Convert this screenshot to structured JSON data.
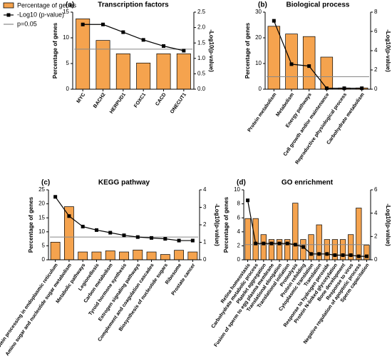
{
  "legend": {
    "items": [
      "Percentage of genes",
      "-Log10 (p-value)",
      "p=0.05"
    ]
  },
  "chart_data": [
    {
      "type": "bar_line",
      "panel": "(a)",
      "title": "Transcription factors",
      "y_label": "Percentage of genes",
      "y2_label": "-Log10(p-value)",
      "categories": [
        "MYC",
        "BACH2",
        "HERPUD1",
        "FOXC1",
        "CACD",
        "ONECUT1"
      ],
      "series": [
        {
          "name": "Percentage of genes",
          "color": "#f5a34e",
          "values": [
            13.7,
            9.5,
            6.9,
            5.1,
            6.9,
            6.9
          ]
        },
        {
          "name": "-Log10 (p-value)",
          "color": "#000000",
          "axis": "y2",
          "values": [
            2.1,
            2.1,
            1.85,
            1.6,
            1.4,
            1.25
          ]
        }
      ],
      "threshold": {
        "name": "p=0.05",
        "value": 1.3,
        "axis": "y2",
        "color": "#888888"
      },
      "ylim": [
        0,
        15
      ],
      "yticks": [
        0,
        5,
        10,
        15
      ],
      "y2lim": [
        0,
        2.5
      ],
      "y2ticks": [
        {
          "value": 0,
          "label": "0.0"
        },
        0.5,
        {
          "value": 1,
          "label": "1.0"
        },
        1.5,
        {
          "value": 2,
          "label": "2.0"
        },
        2.5
      ]
    },
    {
      "type": "bar_line",
      "panel": "(b)",
      "title": "Biological process",
      "y_label": "Percentage of genes",
      "y2_label": "-Log10(p-value)",
      "categories": [
        "Protein metabolism",
        "Metabolism",
        "Energy pathways",
        "Cell growth and/or maintenance",
        "Reproductive physiological process",
        "Carbohydrate metabolism"
      ],
      "series": [
        {
          "name": "Percentage of genes",
          "color": "#f5a34e",
          "values": [
            24.5,
            21.5,
            20.5,
            12.5,
            0.5,
            0.5
          ]
        },
        {
          "name": "-Log10 (p-value)",
          "color": "#000000",
          "axis": "y2",
          "values": [
            7.1,
            2.6,
            2.4,
            0.1,
            0.1,
            0.1
          ]
        }
      ],
      "threshold": {
        "name": "p=0.05",
        "value": 1.3,
        "axis": "y2",
        "color": "#888888"
      },
      "ylim": [
        0,
        30
      ],
      "yticks": [
        0,
        10,
        20,
        30
      ],
      "y2lim": [
        0,
        8
      ],
      "y2ticks": [
        0,
        2,
        4,
        6,
        8
      ]
    },
    {
      "type": "bar_line",
      "panel": "(c)",
      "title": "KEGG pathway",
      "y_label": "Percentage of genes",
      "y2_label": "-Log10(p-value)",
      "categories": [
        "Protein processing in endoplasmic reticulum",
        "Amino sugar and nucleotide sugar metabolism",
        "Metabolic pathways",
        "Legionellosis",
        "Carbon metabolism",
        "Tyroid hormone synthesis",
        "Estrogen signaling pathways",
        "Complement and coagulation cascades",
        "Biosynthesis of nucleotide sugars",
        "Ribosome",
        "Prostate cancer"
      ],
      "series": [
        {
          "name": "Percentage of genes",
          "color": "#f5a34e",
          "values": [
            6.3,
            19,
            2.8,
            2.8,
            3.2,
            2.8,
            3.5,
            2.8,
            1.9,
            3.4,
            2.8
          ]
        },
        {
          "name": "-Log10 (p-value)",
          "color": "#000000",
          "axis": "y2",
          "values": [
            3.6,
            2.5,
            1.9,
            1.7,
            1.55,
            1.4,
            1.3,
            1.25,
            1.2,
            1.1,
            1.1
          ]
        }
      ],
      "threshold": {
        "name": "p=0.05",
        "value": 1.3,
        "axis": "y2",
        "color": "#888888"
      },
      "ylim": [
        0,
        25
      ],
      "yticks": [
        0,
        5,
        10,
        15,
        20,
        25
      ],
      "y2lim": [
        0,
        4
      ],
      "y2ticks": [
        0,
        1,
        2,
        3,
        4
      ]
    },
    {
      "type": "bar_line",
      "panel": "(d)",
      "title": "GO enrichment",
      "y_label": "Percentage of genes",
      "y2_label": "-Log10(p-value)",
      "categories": [
        "Retina homeostasis",
        "Carbohydrate metabolic process",
        "Platelet aggregation",
        "Fusion of sperm to egg plasma membrane",
        "Translational elongation",
        "Translational initiation",
        "Proteolysis",
        "Protein refolding",
        "Cytoplasmic translation",
        "Translation",
        "Response to hydrogen peroxide",
        "Protein N-linked glycosylation",
        "Bone development",
        "Response to virus",
        "Negative regulation of apoptotic process",
        "Sperm capacitation"
      ],
      "series": [
        {
          "name": "Percentage of genes",
          "color": "#f5a34e",
          "values": [
            5.9,
            5.9,
            3.6,
            2.9,
            2.9,
            2.9,
            8.1,
            2.9,
            3.6,
            5.0,
            2.9,
            2.9,
            2.9,
            3.6,
            7.4,
            2.1
          ]
        },
        {
          "name": "-Log10 (p-value)",
          "color": "#000000",
          "axis": "y2",
          "values": [
            5.1,
            1.4,
            1.4,
            1.4,
            1.4,
            1.4,
            1.3,
            1.1,
            0.5,
            0.5,
            0.5,
            0.4,
            0.4,
            0.4,
            0.3,
            0.3
          ]
        }
      ],
      "threshold": {
        "name": "p=0.05",
        "value": 1.3,
        "axis": "y2",
        "color": "#888888"
      },
      "ylim": [
        0,
        10
      ],
      "yticks": [
        0,
        2,
        4,
        6,
        8,
        10
      ],
      "y2lim": [
        0,
        6
      ],
      "y2ticks": [
        0,
        2,
        4,
        6
      ]
    }
  ]
}
